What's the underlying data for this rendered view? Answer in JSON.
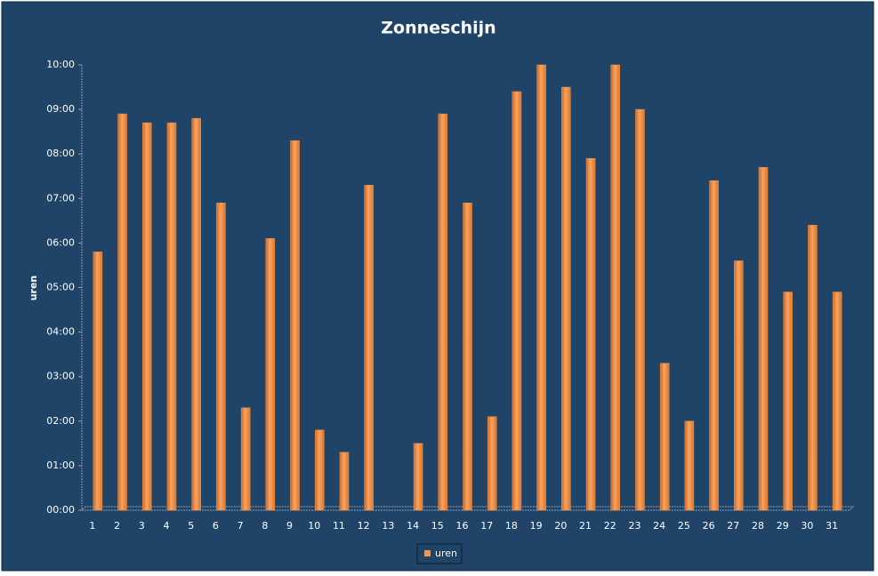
{
  "chart_data": {
    "type": "bar",
    "title": "Zonneschijn",
    "y_label": "uren",
    "categories": [
      "1",
      "2",
      "3",
      "4",
      "5",
      "6",
      "7",
      "8",
      "9",
      "10",
      "11",
      "12",
      "13",
      "14",
      "15",
      "16",
      "17",
      "18",
      "19",
      "20",
      "21",
      "22",
      "23",
      "24",
      "25",
      "26",
      "27",
      "28",
      "29",
      "30",
      "31"
    ],
    "series": [
      {
        "name": "uren",
        "color": "#f79646",
        "values": [
          5.8,
          8.9,
          8.7,
          8.7,
          8.8,
          6.9,
          2.3,
          6.1,
          8.3,
          1.8,
          1.3,
          7.3,
          0,
          1.5,
          8.9,
          6.9,
          2.1,
          9.4,
          10.0,
          9.5,
          7.9,
          10.0,
          9.0,
          3.3,
          2.0,
          7.4,
          5.6,
          7.7,
          4.9,
          6.4,
          4.9
        ]
      }
    ],
    "ylim": [
      0,
      10
    ],
    "yticks": [
      {
        "value": 0,
        "label": "00:00"
      },
      {
        "value": 1,
        "label": "01:00"
      },
      {
        "value": 2,
        "label": "02:00"
      },
      {
        "value": 3,
        "label": "03:00"
      },
      {
        "value": 4,
        "label": "04:00"
      },
      {
        "value": 5,
        "label": "05:00"
      },
      {
        "value": 6,
        "label": "06:00"
      },
      {
        "value": 7,
        "label": "07:00"
      },
      {
        "value": 8,
        "label": "08:00"
      },
      {
        "value": 9,
        "label": "09:00"
      },
      {
        "value": 10,
        "label": "10:00"
      }
    ],
    "grid": false
  }
}
